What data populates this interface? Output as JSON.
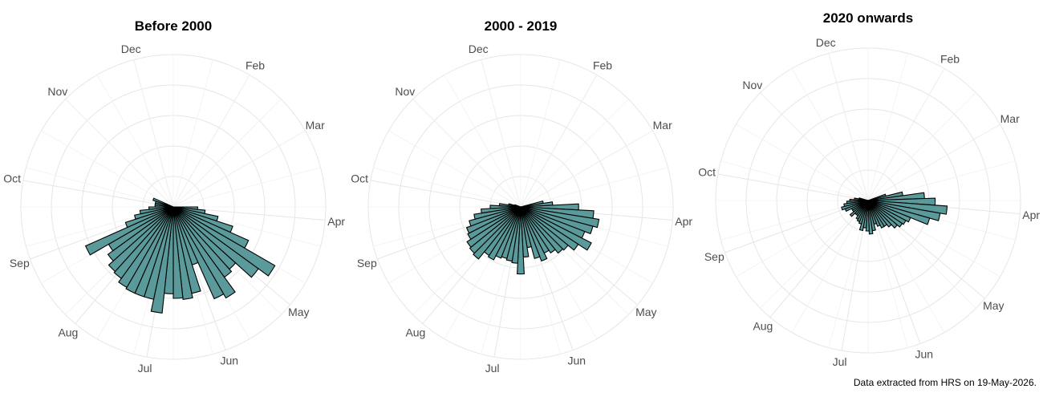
{
  "caption": "Data extracted from HRS on 19-May-2026.",
  "colors": {
    "bar_fill": "#5b9a9a",
    "bar_stroke": "#000000",
    "grid": "#e6e6e6",
    "label": "#4d4d4d"
  },
  "chart_data": [
    {
      "type": "polar-bar",
      "title": "Before 2000",
      "month_labels": [
        "Dec",
        "Feb",
        "Mar",
        "Apr",
        "May",
        "Jun",
        "Jul",
        "Aug",
        "Sep",
        "Oct",
        "Nov"
      ],
      "month_angles_deg": [
        345,
        30,
        60,
        95,
        130,
        160,
        190,
        220,
        250,
        280,
        315
      ],
      "rlim": [
        0,
        100
      ],
      "grid": true,
      "bins": [
        {
          "start": 90,
          "end": 96,
          "value": 16
        },
        {
          "start": 96,
          "end": 102,
          "value": 21
        },
        {
          "start": 102,
          "end": 108,
          "value": 30
        },
        {
          "start": 108,
          "end": 114,
          "value": 41
        },
        {
          "start": 114,
          "end": 120,
          "value": 54
        },
        {
          "start": 120,
          "end": 126,
          "value": 77
        },
        {
          "start": 126,
          "end": 132,
          "value": 69
        },
        {
          "start": 132,
          "end": 138,
          "value": 55
        },
        {
          "start": 138,
          "end": 144,
          "value": 57
        },
        {
          "start": 144,
          "end": 150,
          "value": 69
        },
        {
          "start": 150,
          "end": 156,
          "value": 66
        },
        {
          "start": 156,
          "end": 162,
          "value": 40
        },
        {
          "start": 162,
          "end": 168,
          "value": 58
        },
        {
          "start": 168,
          "end": 174,
          "value": 61
        },
        {
          "start": 174,
          "end": 180,
          "value": 60
        },
        {
          "start": 180,
          "end": 186,
          "value": 57
        },
        {
          "start": 186,
          "end": 192,
          "value": 70
        },
        {
          "start": 192,
          "end": 198,
          "value": 62
        },
        {
          "start": 198,
          "end": 204,
          "value": 62
        },
        {
          "start": 204,
          "end": 210,
          "value": 62
        },
        {
          "start": 210,
          "end": 216,
          "value": 61
        },
        {
          "start": 216,
          "end": 222,
          "value": 58
        },
        {
          "start": 222,
          "end": 228,
          "value": 57
        },
        {
          "start": 228,
          "end": 234,
          "value": 53
        },
        {
          "start": 234,
          "end": 240,
          "value": 49
        },
        {
          "start": 240,
          "end": 246,
          "value": 63
        },
        {
          "start": 246,
          "end": 252,
          "value": 33
        },
        {
          "start": 252,
          "end": 258,
          "value": 26
        },
        {
          "start": 258,
          "end": 264,
          "value": 22
        },
        {
          "start": 264,
          "end": 270,
          "value": 16
        },
        {
          "start": 270,
          "end": 276,
          "value": 12
        },
        {
          "start": 276,
          "end": 282,
          "value": 12
        },
        {
          "start": 282,
          "end": 288,
          "value": 12
        },
        {
          "start": 288,
          "end": 294,
          "value": 14
        }
      ]
    },
    {
      "type": "polar-bar",
      "title": "2000 - 2019",
      "month_labels": [
        "Dec",
        "Feb",
        "Mar",
        "Apr",
        "May",
        "Jun",
        "Jul",
        "Aug",
        "Sep",
        "Oct",
        "Nov"
      ],
      "month_angles_deg": [
        345,
        30,
        60,
        95,
        130,
        160,
        190,
        220,
        250,
        280,
        315
      ],
      "rlim": [
        0,
        100
      ],
      "grid": true,
      "bins": [
        {
          "start": 75,
          "end": 81,
          "value": 15
        },
        {
          "start": 81,
          "end": 87,
          "value": 21
        },
        {
          "start": 87,
          "end": 93,
          "value": 38
        },
        {
          "start": 93,
          "end": 99,
          "value": 48
        },
        {
          "start": 99,
          "end": 105,
          "value": 52
        },
        {
          "start": 105,
          "end": 111,
          "value": 49
        },
        {
          "start": 111,
          "end": 117,
          "value": 45
        },
        {
          "start": 117,
          "end": 123,
          "value": 52
        },
        {
          "start": 123,
          "end": 129,
          "value": 45
        },
        {
          "start": 129,
          "end": 135,
          "value": 40
        },
        {
          "start": 135,
          "end": 141,
          "value": 39
        },
        {
          "start": 141,
          "end": 147,
          "value": 36
        },
        {
          "start": 147,
          "end": 153,
          "value": 34
        },
        {
          "start": 153,
          "end": 159,
          "value": 38
        },
        {
          "start": 159,
          "end": 165,
          "value": 35
        },
        {
          "start": 165,
          "end": 171,
          "value": 27
        },
        {
          "start": 171,
          "end": 177,
          "value": 33
        },
        {
          "start": 177,
          "end": 183,
          "value": 44
        },
        {
          "start": 183,
          "end": 189,
          "value": 37
        },
        {
          "start": 189,
          "end": 195,
          "value": 36
        },
        {
          "start": 195,
          "end": 201,
          "value": 35
        },
        {
          "start": 201,
          "end": 207,
          "value": 36
        },
        {
          "start": 207,
          "end": 213,
          "value": 39
        },
        {
          "start": 213,
          "end": 219,
          "value": 38
        },
        {
          "start": 219,
          "end": 225,
          "value": 44
        },
        {
          "start": 225,
          "end": 231,
          "value": 43
        },
        {
          "start": 231,
          "end": 237,
          "value": 42
        },
        {
          "start": 237,
          "end": 243,
          "value": 39
        },
        {
          "start": 243,
          "end": 249,
          "value": 38
        },
        {
          "start": 249,
          "end": 255,
          "value": 35
        },
        {
          "start": 255,
          "end": 261,
          "value": 31
        },
        {
          "start": 261,
          "end": 267,
          "value": 26
        },
        {
          "start": 267,
          "end": 273,
          "value": 20
        },
        {
          "start": 273,
          "end": 279,
          "value": 14
        },
        {
          "start": 279,
          "end": 285,
          "value": 8
        },
        {
          "start": 285,
          "end": 291,
          "value": 4
        }
      ]
    },
    {
      "type": "polar-bar",
      "title": "2020 onwards",
      "month_labels": [
        "Dec",
        "Feb",
        "Mar",
        "Apr",
        "May",
        "Jun",
        "Jul",
        "Aug",
        "Sep",
        "Oct",
        "Nov"
      ],
      "month_angles_deg": [
        345,
        30,
        60,
        95,
        130,
        160,
        190,
        220,
        250,
        280,
        315
      ],
      "rlim": [
        0,
        100
      ],
      "grid": true,
      "bins": [
        {
          "start": 70,
          "end": 76,
          "value": 12
        },
        {
          "start": 76,
          "end": 82,
          "value": 23
        },
        {
          "start": 82,
          "end": 88,
          "value": 37
        },
        {
          "start": 88,
          "end": 94,
          "value": 44
        },
        {
          "start": 94,
          "end": 100,
          "value": 52
        },
        {
          "start": 100,
          "end": 106,
          "value": 48
        },
        {
          "start": 106,
          "end": 112,
          "value": 42
        },
        {
          "start": 112,
          "end": 118,
          "value": 30
        },
        {
          "start": 118,
          "end": 124,
          "value": 28
        },
        {
          "start": 124,
          "end": 130,
          "value": 27
        },
        {
          "start": 130,
          "end": 136,
          "value": 25
        },
        {
          "start": 136,
          "end": 142,
          "value": 22
        },
        {
          "start": 142,
          "end": 148,
          "value": 20
        },
        {
          "start": 148,
          "end": 154,
          "value": 20
        },
        {
          "start": 154,
          "end": 160,
          "value": 18
        },
        {
          "start": 160,
          "end": 166,
          "value": 16
        },
        {
          "start": 166,
          "end": 172,
          "value": 20
        },
        {
          "start": 172,
          "end": 178,
          "value": 22
        },
        {
          "start": 178,
          "end": 184,
          "value": 20
        },
        {
          "start": 184,
          "end": 190,
          "value": 18
        },
        {
          "start": 190,
          "end": 196,
          "value": 20
        },
        {
          "start": 196,
          "end": 202,
          "value": 16
        },
        {
          "start": 202,
          "end": 208,
          "value": 15
        },
        {
          "start": 208,
          "end": 214,
          "value": 14
        },
        {
          "start": 214,
          "end": 220,
          "value": 12
        },
        {
          "start": 220,
          "end": 226,
          "value": 12
        },
        {
          "start": 226,
          "end": 232,
          "value": 15
        },
        {
          "start": 232,
          "end": 238,
          "value": 12
        },
        {
          "start": 238,
          "end": 244,
          "value": 12
        },
        {
          "start": 244,
          "end": 250,
          "value": 16
        },
        {
          "start": 250,
          "end": 256,
          "value": 18
        },
        {
          "start": 256,
          "end": 262,
          "value": 16
        },
        {
          "start": 262,
          "end": 268,
          "value": 14
        },
        {
          "start": 268,
          "end": 274,
          "value": 12
        },
        {
          "start": 274,
          "end": 280,
          "value": 9
        },
        {
          "start": 280,
          "end": 286,
          "value": 6
        }
      ]
    }
  ]
}
